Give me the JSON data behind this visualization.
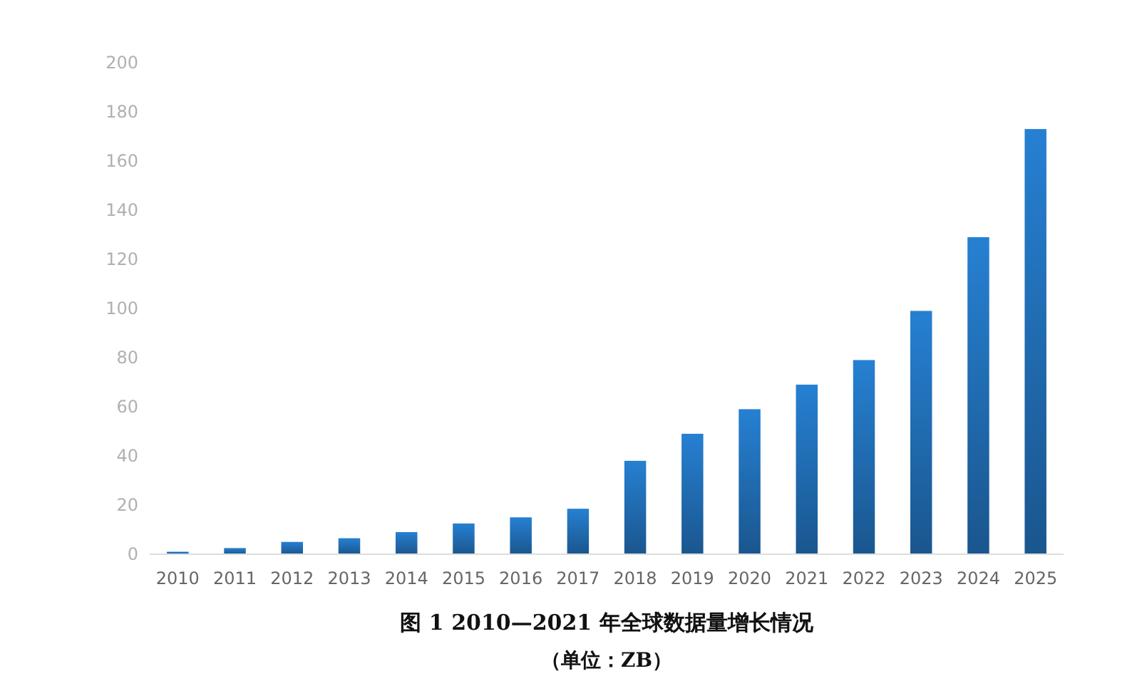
{
  "chart_data": {
    "type": "bar",
    "title": "图 1 2010—2021 年全球数据量增长情况",
    "categories": [
      "2010",
      "2011",
      "2012",
      "2013",
      "2014",
      "2015",
      "2016",
      "2017",
      "2018",
      "2019",
      "2020",
      "2021",
      "2022",
      "2023",
      "2024",
      "2025"
    ],
    "values": [
      1,
      2.5,
      5,
      6.5,
      9,
      12.5,
      15,
      18.5,
      38,
      49,
      59,
      69,
      79,
      99,
      129,
      173
    ],
    "color": "#2680d2",
    "ylim": [
      0,
      200
    ],
    "yticks": [
      0,
      20,
      40,
      60,
      80,
      100,
      120,
      140,
      160,
      180,
      200
    ],
    "grid": false,
    "annotations": [
      "（单位：ZB）"
    ]
  }
}
